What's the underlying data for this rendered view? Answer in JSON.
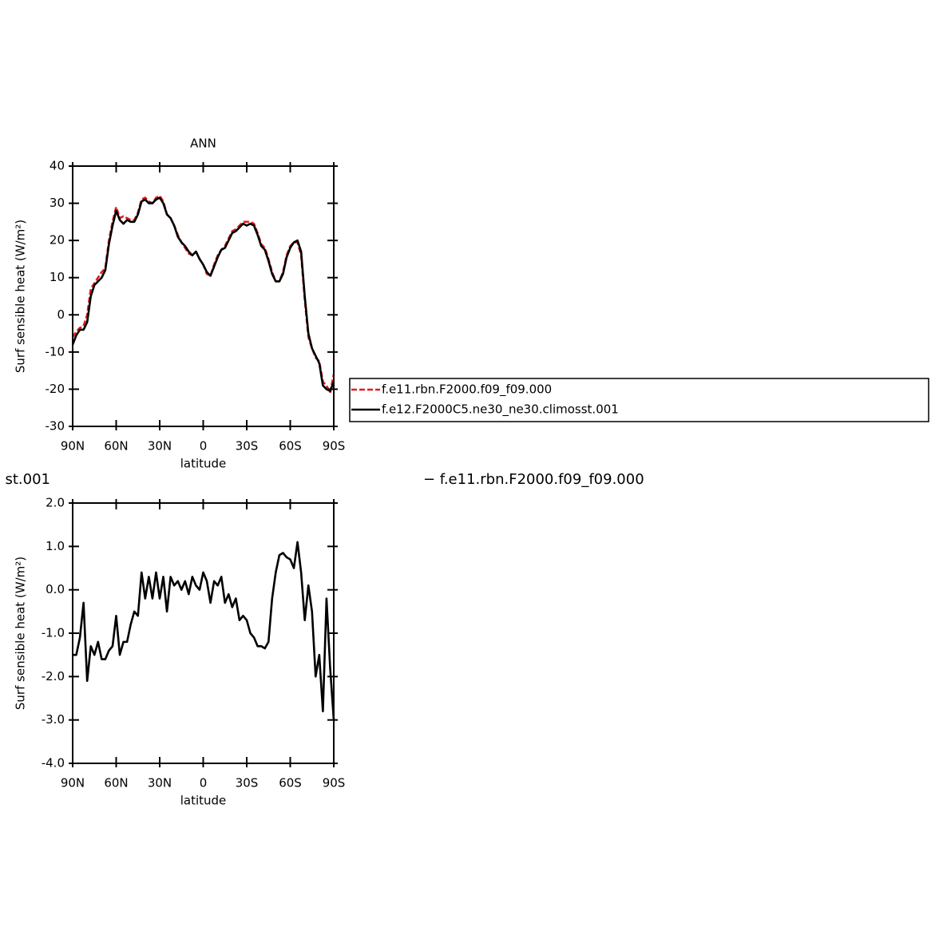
{
  "chart_data": [
    {
      "type": "line",
      "title": "ANN",
      "x_label": "latitude",
      "y_label": "Surf sensible heat (W/m²)",
      "x": [
        90,
        87.5,
        85,
        82.5,
        80,
        77.5,
        75,
        72.5,
        70,
        67.5,
        65,
        62.5,
        60,
        57.5,
        55,
        52.5,
        50,
        47.5,
        45,
        42.5,
        40,
        37.5,
        35,
        32.5,
        30,
        27.5,
        25,
        22.5,
        20,
        17.5,
        15,
        12.5,
        10,
        7.5,
        5,
        2.5,
        0,
        -2.5,
        -5,
        -7.5,
        -10,
        -12.5,
        -15,
        -17.5,
        -20,
        -22.5,
        -25,
        -27.5,
        -30,
        -32.5,
        -35,
        -37.5,
        -40,
        -42.5,
        -45,
        -47.5,
        -50,
        -52.5,
        -55,
        -57.5,
        -60,
        -62.5,
        -65,
        -67.5,
        -70,
        -72.5,
        -75,
        -77.5,
        -80,
        -82.5,
        -85,
        -87.5,
        -90
      ],
      "series": [
        {
          "name": "f.e11.rbn.F2000.f09_f09.000",
          "color": "#e41a1c",
          "line_style": "dashed",
          "values": [
            -6,
            -4.5,
            -3.5,
            -3,
            0,
            7,
            8.5,
            10,
            11.5,
            12.5,
            20,
            25,
            29,
            26,
            26.5,
            26,
            25.5,
            25.5,
            27.5,
            31,
            31.5,
            30.5,
            30,
            31.5,
            32,
            30.5,
            27,
            26,
            24,
            21.5,
            19.5,
            18,
            16.5,
            16,
            17,
            15,
            13.5,
            11,
            10.5,
            13.5,
            16,
            17.5,
            18.5,
            20.5,
            22.5,
            23,
            24,
            25,
            25,
            25,
            24.5,
            22,
            19,
            18,
            15,
            11.5,
            9,
            9,
            11.5,
            16,
            18.5,
            19.5,
            19.5,
            16,
            4,
            -6,
            -9,
            -11.5,
            -12.5,
            -18,
            -19,
            -21,
            -16
          ]
        },
        {
          "name": "f.e12.F2000C5.ne30_ne30.climosst.001",
          "color": "#000000",
          "line_style": "solid",
          "values": [
            -8,
            -5.5,
            -4,
            -4,
            -2,
            5,
            8,
            9,
            10,
            12,
            19,
            24,
            28,
            25.5,
            24.5,
            25.5,
            25,
            25,
            27,
            30.5,
            31,
            30,
            30,
            31,
            31.5,
            30,
            27,
            26,
            24,
            21,
            19.5,
            18.5,
            17,
            16,
            17,
            15,
            13.5,
            11.5,
            10.5,
            13,
            15.5,
            17.5,
            18,
            20,
            22,
            22.5,
            23.5,
            24.5,
            24,
            24.5,
            24,
            21.5,
            18.5,
            17.5,
            14.5,
            11,
            9,
            9,
            11,
            15.5,
            18,
            19.5,
            20,
            17,
            5,
            -5,
            -9,
            -11,
            -13,
            -19,
            -20,
            -20.5,
            -18
          ]
        }
      ],
      "xlim": [
        90,
        -90
      ],
      "xticks": [
        {
          "value": 90,
          "label": "90N"
        },
        {
          "value": 60,
          "label": "60N"
        },
        {
          "value": 30,
          "label": "30N"
        },
        0,
        {
          "value": -30,
          "label": "30S"
        },
        {
          "value": -60,
          "label": "60S"
        },
        {
          "value": -90,
          "label": "90S"
        }
      ],
      "ylim": [
        -30,
        40
      ],
      "yticks": [
        -30,
        -20,
        -10,
        0,
        10,
        20,
        30,
        40
      ]
    },
    {
      "type": "line",
      "title_left": "st.001",
      "title_right": "− f.e11.rbn.F2000.f09_f09.000",
      "x_label": "latitude",
      "y_label": "Surf sensible heat (W/m²)",
      "x": [
        90,
        87.5,
        85,
        82.5,
        80,
        77.5,
        75,
        72.5,
        70,
        67.5,
        65,
        62.5,
        60,
        57.5,
        55,
        52.5,
        50,
        47.5,
        45,
        42.5,
        40,
        37.5,
        35,
        32.5,
        30,
        27.5,
        25,
        22.5,
        20,
        17.5,
        15,
        12.5,
        10,
        7.5,
        5,
        2.5,
        0,
        -2.5,
        -5,
        -7.5,
        -10,
        -12.5,
        -15,
        -17.5,
        -20,
        -22.5,
        -25,
        -27.5,
        -30,
        -32.5,
        -35,
        -37.5,
        -40,
        -42.5,
        -45,
        -47.5,
        -50,
        -52.5,
        -55,
        -57.5,
        -60,
        -62.5,
        -65,
        -67.5,
        -70,
        -72.5,
        -75,
        -77.5,
        -80,
        -82.5,
        -85,
        -87.5,
        -90
      ],
      "series": [
        {
          "color": "#000000",
          "values": [
            -1.5,
            -1.5,
            -1.1,
            -0.3,
            -2.1,
            -1.3,
            -1.5,
            -1.2,
            -1.6,
            -1.6,
            -1.4,
            -1.3,
            -0.6,
            -1.5,
            -1.2,
            -1.2,
            -0.8,
            -0.5,
            -0.6,
            0.4,
            -0.2,
            0.3,
            -0.2,
            0.4,
            -0.2,
            0.3,
            -0.5,
            0.3,
            0.1,
            0.2,
            0.0,
            0.2,
            -0.1,
            0.3,
            0.1,
            0.0,
            0.4,
            0.2,
            -0.3,
            0.2,
            0.1,
            0.3,
            -0.3,
            -0.1,
            -0.4,
            -0.2,
            -0.7,
            -0.6,
            -0.7,
            -1.0,
            -1.1,
            -1.3,
            -1.3,
            -1.35,
            -1.2,
            -0.2,
            0.4,
            0.8,
            0.85,
            0.75,
            0.7,
            0.5,
            1.1,
            0.4,
            -0.7,
            0.1,
            -0.5,
            -2.0,
            -1.5,
            -2.8,
            -0.2,
            -1.8,
            -3.0
          ]
        }
      ],
      "xlim": [
        90,
        -90
      ],
      "xticks": [
        {
          "value": 90,
          "label": "90N"
        },
        {
          "value": 60,
          "label": "60N"
        },
        {
          "value": 30,
          "label": "30N"
        },
        0,
        {
          "value": -30,
          "label": "30S"
        },
        {
          "value": -60,
          "label": "60S"
        },
        {
          "value": -90,
          "label": "90S"
        }
      ],
      "ylim": [
        -4,
        2
      ],
      "yticks": [
        {
          "value": -4,
          "label": "-4.0"
        },
        {
          "value": -3,
          "label": "-3.0"
        },
        {
          "value": -2,
          "label": "-2.0"
        },
        {
          "value": -1,
          "label": "-1.0"
        },
        {
          "value": 0,
          "label": "0.0"
        },
        {
          "value": 1,
          "label": "1.0"
        },
        {
          "value": 2,
          "label": "2.0"
        }
      ]
    }
  ]
}
